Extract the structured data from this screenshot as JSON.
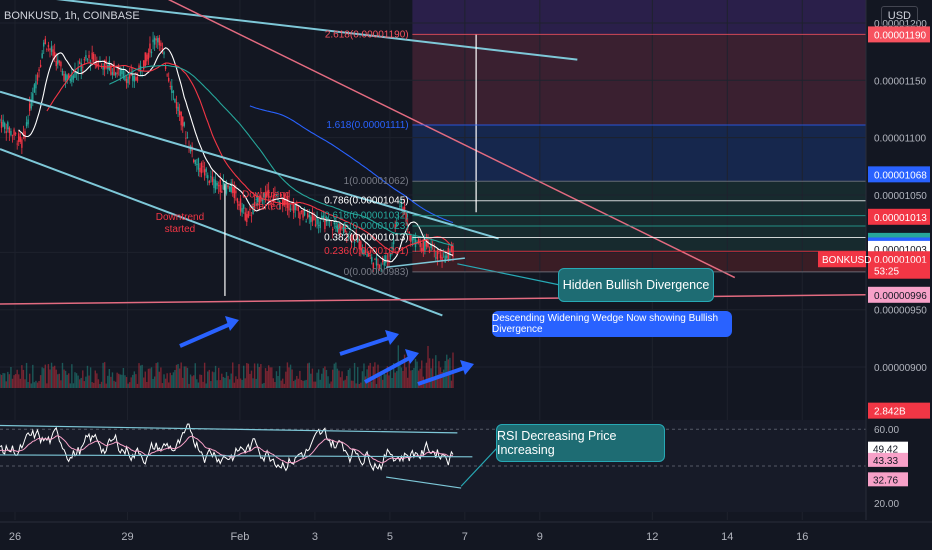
{
  "header": {
    "symbol": "BONKUSD, 1h, COINBASE",
    "currency": "USD"
  },
  "price_axis": {
    "ticks": [
      "0.00001200",
      "0.00001150",
      "0.00001100",
      "0.00001050",
      "0.00000950",
      "0.00000900"
    ],
    "badges": [
      {
        "text": "0.00001190",
        "bg": "#f7525f",
        "fg": "#ffffff",
        "value": 1.19e-05
      },
      {
        "text": "0.00001068",
        "bg": "#2962ff",
        "fg": "#ffffff",
        "value": 1.068e-05
      },
      {
        "text": "0.00001013",
        "bg": "#f23645",
        "fg": "#ffffff",
        "value": 1.031e-05
      },
      {
        "text": "0.00001010",
        "bg": "#26a69a",
        "fg": "#ffffff",
        "value": 1.01e-05
      },
      {
        "text": "0.00001006",
        "bg": "#2962ff",
        "fg": "#ffffff",
        "value": 1.006e-05
      },
      {
        "text": "0.00001003",
        "bg": "#ffffff",
        "fg": "#131722",
        "value": 1.003e-05
      },
      {
        "text": "0.00001001",
        "bg": "#f23645",
        "fg": "#ffffff",
        "value": 9.94e-06
      },
      {
        "text": "53:25",
        "bg": "#f23645",
        "fg": "#ffffff",
        "value": 9.84e-06
      },
      {
        "text": "0.00000996",
        "bg": "#f7a1c8",
        "fg": "#131722",
        "value": 9.63e-06
      },
      {
        "text": "2.842B",
        "bg": "#f23645",
        "fg": "#ffffff",
        "value": 8.62e-06
      }
    ],
    "symbol_tag": "BONKUSD"
  },
  "rsi_axis": {
    "ticks": [
      {
        "text": "60.00",
        "value": 60
      },
      {
        "text": "20.00",
        "value": 20
      }
    ],
    "badges": [
      {
        "text": "49.42",
        "bg": "#ffffff",
        "fg": "#131722",
        "value": 49.42
      },
      {
        "text": "43.33",
        "bg": "#f7a1c8",
        "fg": "#131722",
        "value": 43.33
      },
      {
        "text": "32.76",
        "bg": "#f7a1c8",
        "fg": "#131722",
        "value": 32.76
      }
    ]
  },
  "time_axis": {
    "labels": [
      {
        "text": "26",
        "day": 26
      },
      {
        "text": "29",
        "day": 29
      },
      {
        "text": "Feb",
        "day": 32
      },
      {
        "text": "3",
        "day": 34
      },
      {
        "text": "5",
        "day": 36
      },
      {
        "text": "7",
        "day": 38
      },
      {
        "text": "9",
        "day": 40
      },
      {
        "text": "12",
        "day": 43
      },
      {
        "text": "14",
        "day": 45
      },
      {
        "text": "16",
        "day": 47
      }
    ]
  },
  "chart_data": {
    "type": "candlestick",
    "price_range": [
      8.8e-06,
      1.22e-05
    ],
    "day_range": [
      25.6,
      48.7
    ],
    "fib_levels": [
      {
        "label": "2.618(0.00001190)",
        "value": 1.19e-05,
        "color": "#f7525f"
      },
      {
        "label": "1.618(0.00001111)",
        "value": 1.111e-05,
        "color": "#2962ff"
      },
      {
        "label": "1(0.00001062)",
        "value": 1.062e-05,
        "color": "#787b86"
      },
      {
        "label": "0.786(0.00001045)",
        "value": 1.045e-05,
        "color": "#ffffff"
      },
      {
        "label": "0.618(0.00001032)",
        "value": 1.032e-05,
        "color": "#26a69a"
      },
      {
        "label": "0.5(0.00001023)",
        "value": 1.023e-05,
        "color": "#26a69a"
      },
      {
        "label": "0.382(0.00001013)",
        "value": 1.013e-05,
        "color": "#ffffff"
      },
      {
        "label": "0.236(0.00001001)",
        "value": 1.001e-05,
        "color": "#f23645"
      },
      {
        "label": "0(0.00000983)",
        "value": 9.83e-06,
        "color": "#787b86"
      }
    ],
    "annotations": [
      {
        "text": "Downtrend started",
        "day": 30.4,
        "price": 1.028e-05
      },
      {
        "text": "Downtrend started",
        "day": 32.7,
        "price": 1.048e-05
      }
    ],
    "callouts": [
      "Hidden Bullish Divergence",
      "Descending Widening Wedge Now showing Bullish Divergence",
      "RSI Decreasing Price Increasing"
    ],
    "colors": {
      "up": "#26a69a",
      "down": "#f23645",
      "bg": "#131722",
      "grid": "#1e222d"
    }
  }
}
